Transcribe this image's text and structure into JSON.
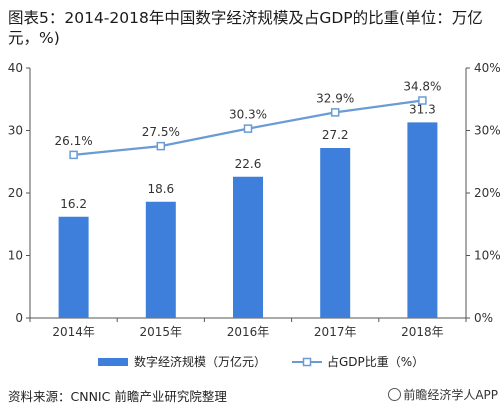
{
  "title": "图表5：2014-2018年中国数字经济规模及占GDP的比重(单位：万亿元，%)",
  "source": "资料来源：CNNIC 前瞻产业研究院整理",
  "brand": "前瞻经济学人APP",
  "colors": {
    "bar": "#3d7fdb",
    "line": "#6a9bd4",
    "axis": "#555555"
  },
  "chart_data": {
    "type": "bar",
    "categories": [
      "2014年",
      "2015年",
      "2016年",
      "2017年",
      "2018年"
    ],
    "series": [
      {
        "name": "数字经济规模（万亿元）",
        "type": "bar",
        "axis": "left",
        "values": [
          16.2,
          18.6,
          22.6,
          27.2,
          31.3
        ],
        "labels": [
          "16.2",
          "18.6",
          "22.6",
          "27.2",
          "31.3"
        ]
      },
      {
        "name": "占GDP比重（%）",
        "type": "line",
        "axis": "right",
        "values": [
          26.1,
          27.5,
          30.3,
          32.9,
          34.8
        ],
        "labels": [
          "26.1%",
          "27.5%",
          "30.3%",
          "32.9%",
          "34.8%"
        ]
      }
    ],
    "y_left": {
      "min": 0,
      "max": 40,
      "ticks": [
        "0",
        "10",
        "20",
        "30",
        "40"
      ]
    },
    "y_right": {
      "min": 0,
      "max": 40,
      "ticks": [
        "0%",
        "10%",
        "20%",
        "30%",
        "40%"
      ]
    },
    "grid": false,
    "legend_position": "bottom"
  }
}
